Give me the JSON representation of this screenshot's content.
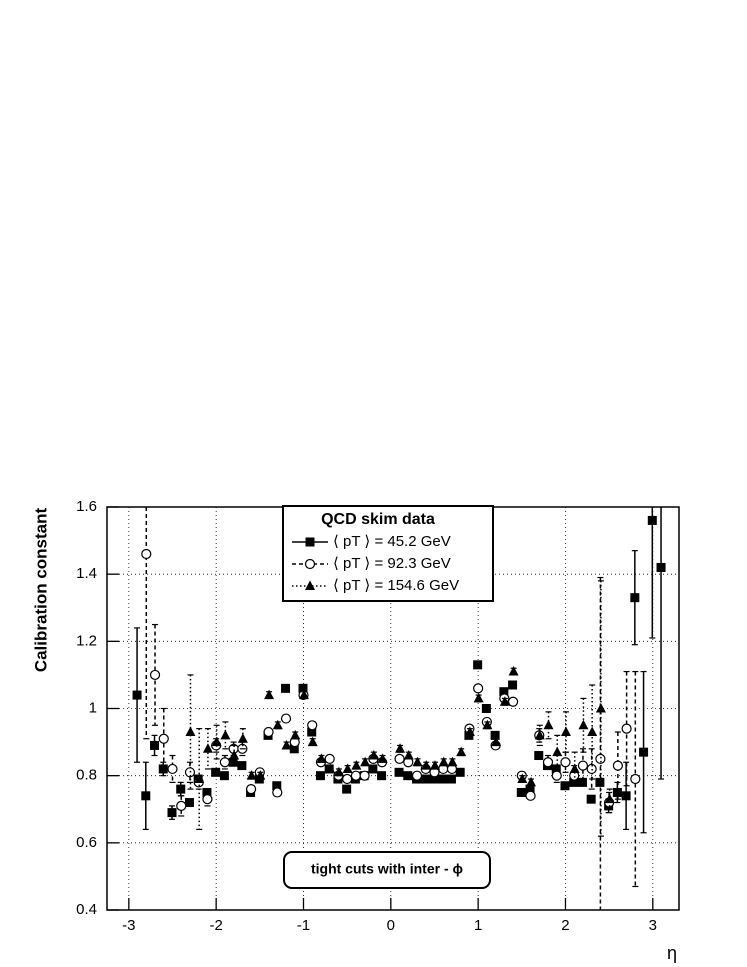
{
  "chart_data": {
    "type": "scatter",
    "y_label": "Calibration constant",
    "x_label": "η",
    "legend_title": "QCD skim data",
    "annotation": "tight cuts  with  inter - ϕ",
    "xlim": [
      -3.25,
      3.3
    ],
    "ylim": [
      0.4,
      1.6
    ],
    "xticks": [
      -3,
      -2,
      -1,
      0,
      1,
      2,
      3
    ],
    "yticks": [
      0.4,
      0.6,
      0.8,
      1,
      1.2,
      1.4,
      1.6
    ],
    "grid": true,
    "legend": "top center",
    "x": [
      -2.9,
      -2.8,
      -2.7,
      -2.6,
      -2.5,
      -2.4,
      -2.3,
      -2.2,
      -2.1,
      -2.0,
      -1.9,
      -1.8,
      -1.7,
      -1.6,
      -1.5,
      -1.4,
      -1.3,
      -1.2,
      -1.1,
      -1.0,
      -0.9,
      -0.8,
      -0.7,
      -0.6,
      -0.5,
      -0.4,
      -0.3,
      -0.2,
      -0.1,
      0.1,
      0.2,
      0.3,
      0.4,
      0.5,
      0.6,
      0.7,
      0.8,
      0.9,
      1.0,
      1.1,
      1.2,
      1.3,
      1.4,
      1.5,
      1.6,
      1.7,
      1.8,
      1.9,
      2.0,
      2.1,
      2.2,
      2.3,
      2.4,
      2.5,
      2.6,
      2.7,
      2.8,
      2.9,
      3.0,
      3.1
    ],
    "series": [
      {
        "name": "⟨ pT ⟩ = 45.2 GeV",
        "color": "#000000",
        "marker": "square",
        "dash": "solid",
        "values": [
          1.04,
          0.74,
          0.89,
          0.82,
          0.69,
          0.76,
          0.72,
          0.79,
          0.75,
          0.81,
          0.8,
          0.84,
          0.83,
          0.75,
          0.79,
          0.92,
          0.77,
          1.06,
          0.88,
          1.06,
          0.93,
          0.8,
          0.82,
          0.79,
          0.76,
          0.79,
          0.8,
          0.82,
          0.8,
          0.81,
          0.8,
          0.79,
          0.79,
          0.79,
          0.79,
          0.79,
          0.81,
          0.92,
          1.13,
          1.0,
          0.92,
          1.05,
          1.07,
          0.75,
          0.76,
          0.86,
          0.83,
          0.82,
          0.77,
          0.78,
          0.78,
          0.73,
          0.78,
          0.71,
          0.75,
          0.74,
          1.33,
          0.87,
          1.56,
          1.42
        ],
        "errors": [
          0.2,
          0.1,
          0.03,
          0.02,
          0.02,
          0.02,
          0.01,
          0.01,
          0.01,
          0.01,
          0.01,
          0.01,
          0.01,
          0.01,
          0.01,
          0.01,
          0.01,
          0.01,
          0.01,
          0.01,
          0.01,
          0.01,
          0.01,
          0.01,
          0.01,
          0.01,
          0.01,
          0.01,
          0.01,
          0.01,
          0.01,
          0.01,
          0.01,
          0.01,
          0.01,
          0.01,
          0.01,
          0.01,
          0.01,
          0.01,
          0.01,
          0.01,
          0.01,
          0.01,
          0.01,
          0.01,
          0.01,
          0.01,
          0.01,
          0.01,
          0.01,
          0.01,
          0.01,
          0.02,
          0.03,
          0.1,
          0.14,
          0.24,
          0.35,
          0.63
        ]
      },
      {
        "name": "⟨ pT ⟩ = 92.3 GeV",
        "color": "#000000",
        "marker": "circle",
        "dash": "dashed",
        "values": [
          null,
          1.46,
          1.1,
          0.91,
          0.82,
          0.71,
          0.81,
          0.78,
          0.73,
          0.89,
          0.84,
          0.88,
          0.88,
          0.76,
          0.81,
          0.93,
          0.75,
          0.97,
          0.9,
          1.04,
          0.95,
          0.84,
          0.85,
          0.8,
          0.79,
          0.8,
          0.8,
          0.85,
          0.84,
          0.85,
          0.84,
          0.8,
          0.82,
          0.81,
          0.82,
          0.82,
          null,
          0.94,
          1.06,
          0.96,
          0.89,
          1.03,
          1.02,
          0.8,
          0.74,
          0.92,
          0.84,
          0.8,
          0.84,
          0.8,
          0.83,
          0.82,
          0.85,
          0.72,
          0.83,
          0.94,
          0.79,
          null,
          null,
          null
        ],
        "errors": [
          null,
          0.55,
          0.15,
          0.09,
          0.04,
          0.03,
          0.03,
          0.02,
          0.02,
          0.02,
          0.02,
          0.02,
          0.02,
          0.01,
          0.01,
          0.01,
          0.01,
          0.01,
          0.01,
          0.01,
          0.01,
          0.01,
          0.01,
          0.01,
          0.01,
          0.01,
          0.01,
          0.01,
          0.01,
          0.01,
          0.01,
          0.01,
          0.01,
          0.01,
          0.01,
          0.01,
          null,
          0.01,
          0.01,
          0.01,
          0.01,
          0.01,
          0.01,
          0.01,
          0.01,
          0.02,
          0.02,
          0.02,
          0.03,
          0.03,
          0.05,
          0.06,
          0.54,
          0.03,
          0.1,
          0.17,
          0.32,
          null,
          null,
          null
        ]
      },
      {
        "name": "⟨ pT ⟩ = 154.6 GeV",
        "color": "#000000",
        "marker": "triangle",
        "dash": "dotted",
        "values": [
          null,
          null,
          null,
          null,
          null,
          null,
          0.93,
          0.79,
          0.88,
          0.9,
          0.92,
          0.86,
          0.91,
          0.8,
          0.8,
          1.04,
          0.95,
          0.89,
          0.92,
          1.04,
          0.9,
          0.85,
          0.82,
          0.81,
          0.82,
          0.83,
          0.84,
          0.86,
          0.85,
          0.88,
          0.86,
          0.84,
          0.83,
          0.83,
          0.84,
          0.84,
          0.87,
          0.93,
          1.03,
          0.95,
          0.9,
          1.02,
          1.11,
          0.79,
          0.78,
          0.92,
          0.95,
          0.87,
          0.93,
          0.82,
          0.95,
          0.93,
          1.0,
          0.73,
          null,
          null,
          null,
          null,
          null,
          null
        ],
        "errors": [
          null,
          null,
          null,
          null,
          null,
          null,
          0.17,
          0.15,
          0.06,
          0.05,
          0.04,
          0.03,
          0.03,
          0.01,
          0.01,
          0.01,
          0.01,
          0.01,
          0.01,
          0.01,
          0.01,
          0.01,
          0.01,
          0.01,
          0.01,
          0.01,
          0.01,
          0.01,
          0.01,
          0.01,
          0.01,
          0.01,
          0.01,
          0.01,
          0.01,
          0.01,
          0.01,
          0.01,
          0.01,
          0.01,
          0.01,
          0.01,
          0.01,
          0.01,
          0.01,
          0.03,
          0.04,
          0.05,
          0.06,
          0.05,
          0.08,
          0.14,
          0.38,
          0.03,
          null,
          null,
          null,
          null,
          null,
          null
        ]
      }
    ]
  }
}
